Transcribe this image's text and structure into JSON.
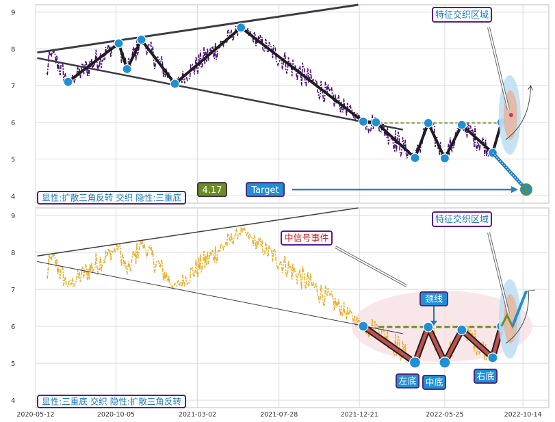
{
  "chart_data": [
    {
      "type": "line",
      "panel": "top",
      "y_ticks": [
        4,
        5,
        6,
        7,
        8,
        9
      ],
      "ylim": [
        3.8,
        9.2
      ],
      "x_ticks": [
        "2020-05-12",
        "2020-10-05",
        "2021-03-02",
        "2021-07-28",
        "2021-12-21",
        "2022-05-25",
        "2022-10-14"
      ],
      "xlim": [
        "2020-05-12",
        "2022-11-30"
      ],
      "grid": true,
      "series_color": "#4b0a7a",
      "pivots": [
        {
          "x": "2020-07-10",
          "y": 7.1
        },
        {
          "x": "2020-10-10",
          "y": 8.15
        },
        {
          "x": "2020-10-25",
          "y": 7.45
        },
        {
          "x": "2020-11-20",
          "y": 8.25
        },
        {
          "x": "2021-01-20",
          "y": 7.05
        },
        {
          "x": "2021-05-20",
          "y": 8.58
        },
        {
          "x": "2021-12-28",
          "y": 6.02
        },
        {
          "x": "2022-01-20",
          "y": 6.0
        },
        {
          "x": "2022-04-01",
          "y": 5.03
        },
        {
          "x": "2022-04-25",
          "y": 5.98
        },
        {
          "x": "2022-05-25",
          "y": 5.02
        },
        {
          "x": "2022-06-25",
          "y": 5.93
        },
        {
          "x": "2022-08-20",
          "y": 5.17
        },
        {
          "x": "2022-09-05",
          "y": 6.0
        }
      ],
      "upper_line": [
        {
          "x": "2020-05-15",
          "y": 7.9
        },
        {
          "x": "2022-04-10",
          "y": 9.45
        }
      ],
      "lower_line": [
        {
          "x": "2020-05-15",
          "y": 7.75
        },
        {
          "x": "2022-03-10",
          "y": 5.8
        }
      ],
      "neckline": [
        {
          "x": "2022-01-25",
          "y": 5.98
        },
        {
          "x": "2022-09-10",
          "y": 5.98
        }
      ],
      "target_value": 4.17,
      "target_label": "Target",
      "target_point": {
        "x": "2022-10-20",
        "y": 4.17
      },
      "annotation_title": "特征交织区域",
      "caption": "显性:扩散三角反转 交织 隐性:三重底"
    },
    {
      "type": "line",
      "panel": "bottom",
      "y_ticks": [
        4,
        5,
        6,
        7,
        8,
        9
      ],
      "ylim": [
        3.8,
        9.2
      ],
      "x_ticks": [
        "2020-05-12",
        "2020-10-05",
        "2021-03-02",
        "2021-07-28",
        "2021-12-21",
        "2022-05-25",
        "2022-10-14"
      ],
      "xlim": [
        "2020-05-12",
        "2022-11-30"
      ],
      "grid": true,
      "series_color": "#e8b030",
      "pivots": [
        {
          "x": "2021-12-28",
          "y": 6.0
        },
        {
          "x": "2022-04-01",
          "y": 5.02
        },
        {
          "x": "2022-04-25",
          "y": 5.98
        },
        {
          "x": "2022-05-25",
          "y": 5.02
        },
        {
          "x": "2022-06-25",
          "y": 5.9
        },
        {
          "x": "2022-08-20",
          "y": 5.15
        },
        {
          "x": "2022-09-05",
          "y": 6.0
        }
      ],
      "upper_line": [
        {
          "x": "2020-05-15",
          "y": 7.9
        },
        {
          "x": "2022-04-10",
          "y": 9.45
        }
      ],
      "lower_line": [
        {
          "x": "2020-05-15",
          "y": 7.75
        },
        {
          "x": "2022-03-10",
          "y": 5.8
        }
      ],
      "neckline": [
        {
          "x": "2022-01-25",
          "y": 5.98
        },
        {
          "x": "2022-09-10",
          "y": 5.98
        }
      ],
      "labels": {
        "left_bottom": "左底",
        "middle_bottom": "中底",
        "right_bottom": "右底",
        "neckline": "颈线",
        "event": "中信号事件"
      },
      "annotation_title": "特征交织区域",
      "caption": "显性:三重底 交织 隐性:扩散三角反转"
    }
  ]
}
